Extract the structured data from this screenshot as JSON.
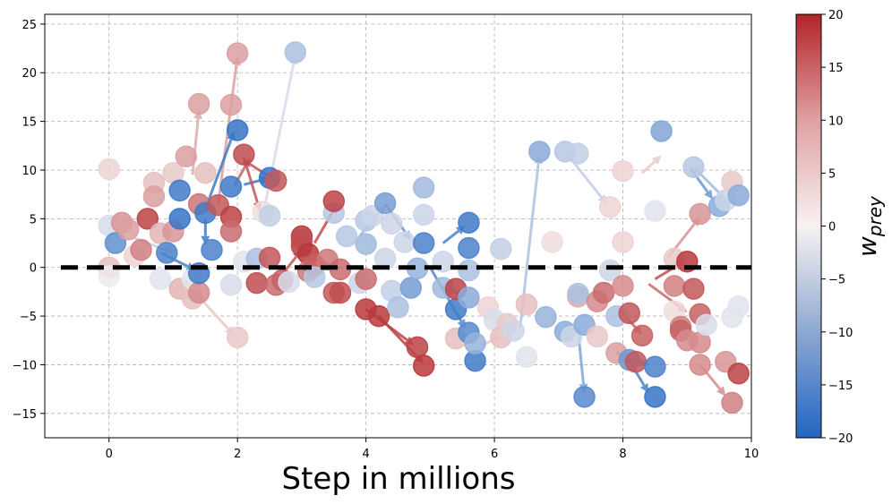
{
  "chart_data": {
    "type": "scatter",
    "xlabel": "Step in millions",
    "xlim": [
      -1,
      10
    ],
    "ylim": [
      -17.5,
      26
    ],
    "xticks": [
      0,
      2,
      4,
      6,
      8,
      10
    ],
    "yticks": [
      -15,
      -10,
      -5,
      0,
      5,
      10,
      15,
      20,
      25
    ],
    "grid": true,
    "reference_line_y": 0,
    "colorbar": {
      "label_main": "w",
      "label_sub": "prey",
      "range": [
        -20,
        20
      ],
      "ticks": [
        -20,
        -15,
        -10,
        -5,
        0,
        5,
        10,
        15,
        20
      ],
      "colors": [
        "#2166c1",
        "#f7f2f1",
        "#b22428"
      ]
    },
    "marker_alpha": 0.85,
    "points": [
      {
        "x": 0.0,
        "y": 10.1,
        "c": 3
      },
      {
        "x": 0.0,
        "y": 4.3,
        "c": -3
      },
      {
        "x": 0.0,
        "y": 0.0,
        "c": 5
      },
      {
        "x": 0.0,
        "y": -0.9,
        "c": -1
      },
      {
        "x": 0.1,
        "y": 2.5,
        "c": -14
      },
      {
        "x": 0.2,
        "y": 4.6,
        "c": 9
      },
      {
        "x": 0.3,
        "y": 3.9,
        "c": 8
      },
      {
        "x": 0.4,
        "y": 1.2,
        "c": 3
      },
      {
        "x": 0.5,
        "y": 1.8,
        "c": 11
      },
      {
        "x": 0.6,
        "y": 5.0,
        "c": 17
      },
      {
        "x": 0.7,
        "y": 8.7,
        "c": 5
      },
      {
        "x": 0.7,
        "y": 7.3,
        "c": 8
      },
      {
        "x": 0.8,
        "y": 3.5,
        "c": 6
      },
      {
        "x": 0.8,
        "y": -1.2,
        "c": -2
      },
      {
        "x": 0.9,
        "y": 1.5,
        "c": -16
      },
      {
        "x": 1.0,
        "y": 9.7,
        "c": 4
      },
      {
        "x": 1.0,
        "y": 3.7,
        "c": 9
      },
      {
        "x": 1.1,
        "y": 7.9,
        "c": -17
      },
      {
        "x": 1.1,
        "y": -2.2,
        "c": 6
      },
      {
        "x": 1.1,
        "y": 5.0,
        "c": -18
      },
      {
        "x": 1.2,
        "y": 11.4,
        "c": 8
      },
      {
        "x": 1.3,
        "y": -3.2,
        "c": 5
      },
      {
        "x": 1.3,
        "y": -1.2,
        "c": -2
      },
      {
        "x": 1.4,
        "y": 16.8,
        "c": 8
      },
      {
        "x": 1.4,
        "y": 6.5,
        "c": 12
      },
      {
        "x": 1.4,
        "y": -2.6,
        "c": 10
      },
      {
        "x": 1.4,
        "y": -0.6,
        "c": -17
      },
      {
        "x": 1.5,
        "y": 9.7,
        "c": 5
      },
      {
        "x": 1.5,
        "y": 5.6,
        "c": -17
      },
      {
        "x": 1.6,
        "y": 1.8,
        "c": -16
      },
      {
        "x": 1.7,
        "y": 6.4,
        "c": 15
      },
      {
        "x": 1.9,
        "y": 8.3,
        "c": -17
      },
      {
        "x": 1.9,
        "y": 5.2,
        "c": 17
      },
      {
        "x": 1.9,
        "y": 3.7,
        "c": 13
      },
      {
        "x": 1.9,
        "y": -1.8,
        "c": -3
      },
      {
        "x": 1.9,
        "y": 16.7,
        "c": 8
      },
      {
        "x": 2.0,
        "y": 22.0,
        "c": 8
      },
      {
        "x": 2.0,
        "y": 14.1,
        "c": -18
      },
      {
        "x": 2.0,
        "y": -7.2,
        "c": 4
      },
      {
        "x": 2.1,
        "y": 0.6,
        "c": -2
      },
      {
        "x": 2.1,
        "y": 11.6,
        "c": 16
      },
      {
        "x": 2.3,
        "y": 0.9,
        "c": -7
      },
      {
        "x": 2.3,
        "y": -1.6,
        "c": 16
      },
      {
        "x": 2.4,
        "y": 5.7,
        "c": 2
      },
      {
        "x": 2.5,
        "y": 9.2,
        "c": -18
      },
      {
        "x": 2.5,
        "y": 5.3,
        "c": -5
      },
      {
        "x": 2.5,
        "y": 1.0,
        "c": 15
      },
      {
        "x": 2.6,
        "y": 8.9,
        "c": 15
      },
      {
        "x": 2.6,
        "y": -1.8,
        "c": 13
      },
      {
        "x": 2.7,
        "y": -1.3,
        "c": 14
      },
      {
        "x": 2.8,
        "y": -1.5,
        "c": -3
      },
      {
        "x": 2.9,
        "y": 22.1,
        "c": -7
      },
      {
        "x": 3.0,
        "y": 3.2,
        "c": 18
      },
      {
        "x": 3.0,
        "y": 2.2,
        "c": 17
      },
      {
        "x": 3.0,
        "y": 2.8,
        "c": 16
      },
      {
        "x": 3.1,
        "y": 1.4,
        "c": 18
      },
      {
        "x": 3.1,
        "y": -0.4,
        "c": 12
      },
      {
        "x": 3.2,
        "y": 0.2,
        "c": 14
      },
      {
        "x": 3.2,
        "y": -1.0,
        "c": -6
      },
      {
        "x": 3.4,
        "y": 0.8,
        "c": 12
      },
      {
        "x": 3.5,
        "y": 5.6,
        "c": -6
      },
      {
        "x": 3.5,
        "y": 6.8,
        "c": 17
      },
      {
        "x": 3.5,
        "y": -2.6,
        "c": 15
      },
      {
        "x": 3.6,
        "y": -2.6,
        "c": 16
      },
      {
        "x": 3.6,
        "y": -0.2,
        "c": 13
      },
      {
        "x": 3.7,
        "y": 3.2,
        "c": -6
      },
      {
        "x": 3.9,
        "y": -1.6,
        "c": -4
      },
      {
        "x": 4.0,
        "y": 4.8,
        "c": -6
      },
      {
        "x": 4.0,
        "y": 2.4,
        "c": -8
      },
      {
        "x": 4.0,
        "y": -1.2,
        "c": 13
      },
      {
        "x": 4.0,
        "y": -4.3,
        "c": 18
      },
      {
        "x": 4.1,
        "y": 5.3,
        "c": -4
      },
      {
        "x": 4.2,
        "y": -5.0,
        "c": 18
      },
      {
        "x": 4.3,
        "y": 6.6,
        "c": -12
      },
      {
        "x": 4.3,
        "y": 0.9,
        "c": -4
      },
      {
        "x": 4.4,
        "y": 4.5,
        "c": -4
      },
      {
        "x": 4.4,
        "y": -2.4,
        "c": -5
      },
      {
        "x": 4.5,
        "y": -4.1,
        "c": -7
      },
      {
        "x": 4.6,
        "y": 2.6,
        "c": -4
      },
      {
        "x": 4.7,
        "y": -2.1,
        "c": -12
      },
      {
        "x": 4.8,
        "y": -0.1,
        "c": -9
      },
      {
        "x": 4.8,
        "y": -8.2,
        "c": 17
      },
      {
        "x": 4.9,
        "y": -10.1,
        "c": 18
      },
      {
        "x": 4.9,
        "y": 8.2,
        "c": -8
      },
      {
        "x": 4.9,
        "y": 5.4,
        "c": -4
      },
      {
        "x": 4.9,
        "y": 2.5,
        "c": -16
      },
      {
        "x": 5.2,
        "y": 0.6,
        "c": -4
      },
      {
        "x": 5.2,
        "y": -2.1,
        "c": -8
      },
      {
        "x": 5.4,
        "y": -7.3,
        "c": 5
      },
      {
        "x": 5.4,
        "y": -4.3,
        "c": -17
      },
      {
        "x": 5.4,
        "y": -2.2,
        "c": 17
      },
      {
        "x": 5.6,
        "y": 4.6,
        "c": -17
      },
      {
        "x": 5.6,
        "y": 2.0,
        "c": -16
      },
      {
        "x": 5.6,
        "y": -0.3,
        "c": -7
      },
      {
        "x": 5.6,
        "y": -3.1,
        "c": -10
      },
      {
        "x": 5.6,
        "y": -6.7,
        "c": -15
      },
      {
        "x": 5.7,
        "y": -9.6,
        "c": -17
      },
      {
        "x": 5.7,
        "y": -7.8,
        "c": -9
      },
      {
        "x": 5.9,
        "y": -4.1,
        "c": 3
      },
      {
        "x": 6.0,
        "y": -5.4,
        "c": -3
      },
      {
        "x": 6.1,
        "y": 1.9,
        "c": -5
      },
      {
        "x": 6.1,
        "y": -7.2,
        "c": 5
      },
      {
        "x": 6.2,
        "y": -5.8,
        "c": 4
      },
      {
        "x": 6.3,
        "y": -6.5,
        "c": -4
      },
      {
        "x": 6.5,
        "y": -3.8,
        "c": 5
      },
      {
        "x": 6.5,
        "y": -9.2,
        "c": -2
      },
      {
        "x": 6.7,
        "y": 11.9,
        "c": -10
      },
      {
        "x": 6.8,
        "y": -5.1,
        "c": -9
      },
      {
        "x": 6.9,
        "y": 2.6,
        "c": 2
      },
      {
        "x": 7.1,
        "y": 11.9,
        "c": -6
      },
      {
        "x": 7.1,
        "y": -6.6,
        "c": -10
      },
      {
        "x": 7.2,
        "y": -7.1,
        "c": -4
      },
      {
        "x": 7.3,
        "y": -3.0,
        "c": 7
      },
      {
        "x": 7.3,
        "y": -2.7,
        "c": -7
      },
      {
        "x": 7.3,
        "y": 11.7,
        "c": -5
      },
      {
        "x": 7.4,
        "y": -13.3,
        "c": -15
      },
      {
        "x": 7.4,
        "y": -5.9,
        "c": -10
      },
      {
        "x": 7.6,
        "y": -7.1,
        "c": 4
      },
      {
        "x": 7.6,
        "y": -3.5,
        "c": 10
      },
      {
        "x": 7.7,
        "y": -2.6,
        "c": 13
      },
      {
        "x": 7.8,
        "y": 6.2,
        "c": 3
      },
      {
        "x": 7.8,
        "y": -0.3,
        "c": -4
      },
      {
        "x": 7.9,
        "y": -5.0,
        "c": -7
      },
      {
        "x": 7.9,
        "y": -8.8,
        "c": 8
      },
      {
        "x": 8.0,
        "y": -1.9,
        "c": 10
      },
      {
        "x": 8.0,
        "y": 9.9,
        "c": 3
      },
      {
        "x": 8.0,
        "y": 2.6,
        "c": 3
      },
      {
        "x": 8.1,
        "y": -4.7,
        "c": 15
      },
      {
        "x": 8.1,
        "y": -9.5,
        "c": -13
      },
      {
        "x": 8.2,
        "y": -9.7,
        "c": 15
      },
      {
        "x": 8.3,
        "y": -7.0,
        "c": 14
      },
      {
        "x": 8.5,
        "y": -10.2,
        "c": -16
      },
      {
        "x": 8.5,
        "y": -13.3,
        "c": -18
      },
      {
        "x": 8.5,
        "y": 5.8,
        "c": -2
      },
      {
        "x": 8.6,
        "y": 14.0,
        "c": -11
      },
      {
        "x": 8.8,
        "y": 0.9,
        "c": 4
      },
      {
        "x": 8.8,
        "y": -1.9,
        "c": 11
      },
      {
        "x": 8.8,
        "y": -4.5,
        "c": 2
      },
      {
        "x": 8.9,
        "y": -6.1,
        "c": 11
      },
      {
        "x": 8.9,
        "y": -6.5,
        "c": 14
      },
      {
        "x": 9.0,
        "y": 0.6,
        "c": 18
      },
      {
        "x": 9.0,
        "y": -7.5,
        "c": 10
      },
      {
        "x": 9.1,
        "y": -2.2,
        "c": 15
      },
      {
        "x": 9.1,
        "y": 10.3,
        "c": -6
      },
      {
        "x": 9.2,
        "y": 5.5,
        "c": 9
      },
      {
        "x": 9.2,
        "y": -4.8,
        "c": 14
      },
      {
        "x": 9.2,
        "y": -7.7,
        "c": 10
      },
      {
        "x": 9.2,
        "y": -10.0,
        "c": 10
      },
      {
        "x": 9.3,
        "y": -5.9,
        "c": -3
      },
      {
        "x": 9.5,
        "y": 6.3,
        "c": -10
      },
      {
        "x": 9.6,
        "y": 6.9,
        "c": -4
      },
      {
        "x": 9.6,
        "y": -9.7,
        "c": 9
      },
      {
        "x": 9.7,
        "y": -13.9,
        "c": 11
      },
      {
        "x": 9.7,
        "y": 8.8,
        "c": 4
      },
      {
        "x": 9.7,
        "y": -5.1,
        "c": -2
      },
      {
        "x": 9.8,
        "y": 7.4,
        "c": -10
      },
      {
        "x": 9.8,
        "y": -10.9,
        "c": 17
      },
      {
        "x": 9.8,
        "y": -4.0,
        "c": -2
      }
    ],
    "arrows": [
      {
        "x1": 1.7,
        "y1": 6.5,
        "x2": 2.0,
        "y2": 21.7,
        "c": 8
      },
      {
        "x1": 1.3,
        "y1": 9.5,
        "x2": 1.4,
        "y2": 16.2,
        "c": 7
      },
      {
        "x1": 1.5,
        "y1": 6.0,
        "x2": 1.95,
        "y2": 14.0,
        "c": -17
      },
      {
        "x1": 1.95,
        "y1": 8.4,
        "x2": 2.2,
        "y2": 11.3,
        "c": 14
      },
      {
        "x1": 2.1,
        "y1": 8.5,
        "x2": 2.5,
        "y2": 9.2,
        "c": -17
      },
      {
        "x1": 2.1,
        "y1": 11.0,
        "x2": 2.6,
        "y2": 8.9,
        "c": 15
      },
      {
        "x1": 2.4,
        "y1": 5.5,
        "x2": 2.9,
        "y2": 21.8,
        "c": -3
      },
      {
        "x1": 0.8,
        "y1": 1.5,
        "x2": 1.35,
        "y2": -0.3,
        "c": -16
      },
      {
        "x1": 1.5,
        "y1": 5.0,
        "x2": 1.5,
        "y2": 2.3,
        "c": -17
      },
      {
        "x1": 1.3,
        "y1": -2.3,
        "x2": 1.95,
        "y2": -7.0,
        "c": 4
      },
      {
        "x1": 2.1,
        "y1": 11.3,
        "x2": 2.35,
        "y2": 5.8,
        "c": 15
      },
      {
        "x1": 2.6,
        "y1": -1.5,
        "x2": 3.0,
        "y2": 1.8,
        "c": 15
      },
      {
        "x1": 3.2,
        "y1": 2.5,
        "x2": 3.55,
        "y2": 6.5,
        "c": 16
      },
      {
        "x1": 3.1,
        "y1": 1.0,
        "x2": 3.6,
        "y2": -0.1,
        "c": 13
      },
      {
        "x1": 4.3,
        "y1": 6.5,
        "x2": 4.7,
        "y2": 2.8,
        "c": -13
      },
      {
        "x1": 4.0,
        "y1": -4.3,
        "x2": 4.75,
        "y2": -8.0,
        "c": 17
      },
      {
        "x1": 4.2,
        "y1": -5.0,
        "x2": 4.9,
        "y2": -9.9,
        "c": 17
      },
      {
        "x1": 5.2,
        "y1": 2.5,
        "x2": 5.55,
        "y2": 4.3,
        "c": -16
      },
      {
        "x1": 5.0,
        "y1": 0.0,
        "x2": 5.55,
        "y2": -6.3,
        "c": -15
      },
      {
        "x1": 5.2,
        "y1": -2.0,
        "x2": 5.55,
        "y2": -3.0,
        "c": -12
      },
      {
        "x1": 5.65,
        "y1": -6.8,
        "x2": 5.55,
        "y2": -8.0,
        "c": -11
      },
      {
        "x1": 6.4,
        "y1": -6.2,
        "x2": 6.7,
        "y2": 11.6,
        "c": -7
      },
      {
        "x1": 7.1,
        "y1": 11.9,
        "x2": 7.75,
        "y2": 6.5,
        "c": -5
      },
      {
        "x1": 7.3,
        "y1": -6.4,
        "x2": 7.4,
        "y2": -12.9,
        "c": -11
      },
      {
        "x1": 8.1,
        "y1": -9.6,
        "x2": 8.4,
        "y2": -12.9,
        "c": -16
      },
      {
        "x1": 8.1,
        "y1": -9.5,
        "x2": 8.4,
        "y2": -10.0,
        "c": -15
      },
      {
        "x1": 7.9,
        "y1": -8.7,
        "x2": 8.15,
        "y2": -9.9,
        "c": 14
      },
      {
        "x1": 8.0,
        "y1": -4.8,
        "x2": 8.3,
        "y2": -6.9,
        "c": 14
      },
      {
        "x1": 9.05,
        "y1": 10.2,
        "x2": 9.4,
        "y2": 7.0,
        "c": -13
      },
      {
        "x1": 9.1,
        "y1": 10.3,
        "x2": 9.6,
        "y2": 7.0,
        "c": -8
      },
      {
        "x1": 9.2,
        "y1": -10.0,
        "x2": 9.6,
        "y2": -13.2,
        "c": 10
      },
      {
        "x1": 8.7,
        "y1": 1.0,
        "x2": 9.2,
        "y2": 5.2,
        "c": 9
      },
      {
        "x1": 8.3,
        "y1": 9.7,
        "x2": 8.6,
        "y2": 11.5,
        "c": 4
      },
      {
        "x1": 8.5,
        "y1": -1.2,
        "x2": 8.95,
        "y2": 0.6,
        "c": 16
      },
      {
        "x1": 8.4,
        "y1": -1.7,
        "x2": 9.0,
        "y2": -4.6,
        "c": 13
      },
      {
        "x1": 5.8,
        "y1": -8.0,
        "x2": 6.1,
        "y2": -7.1,
        "c": 4
      },
      {
        "x1": 0.4,
        "y1": 3.0,
        "x2": 1.0,
        "y2": 1.5,
        "c": -5
      },
      {
        "x1": 3.9,
        "y1": 3.2,
        "x2": 4.3,
        "y2": 6.4,
        "c": -8
      }
    ]
  }
}
